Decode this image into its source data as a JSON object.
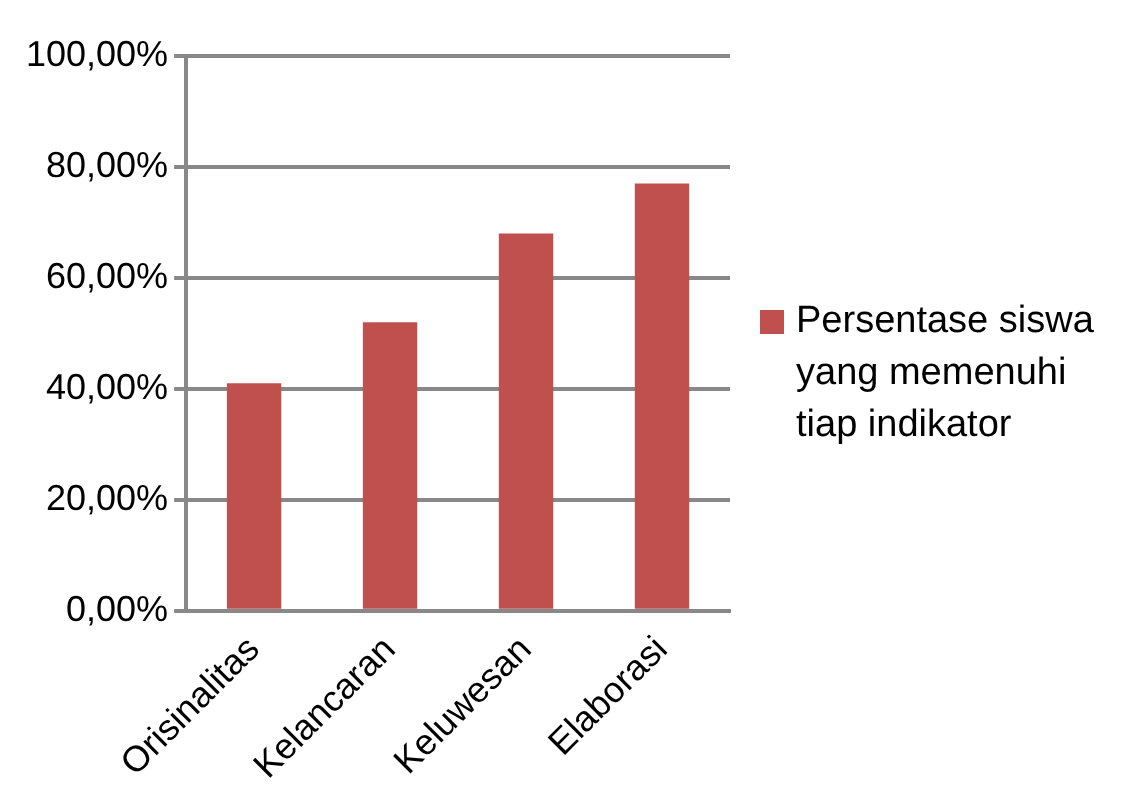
{
  "chart_data": {
    "type": "bar",
    "categories": [
      "Orisinalitas",
      "Kelancaran",
      "Keluwesan",
      "Elaborasi"
    ],
    "series": [
      {
        "name": "Persentase siswa yang memenuhi tiap indikator",
        "color": "#c0504d",
        "values": [
          41,
          52,
          68,
          77
        ]
      }
    ],
    "ylim": [
      0,
      100
    ],
    "yticks": [
      {
        "value": 0,
        "label": "0,00%"
      },
      {
        "value": 20,
        "label": "20,00%"
      },
      {
        "value": 40,
        "label": "40,00%"
      },
      {
        "value": 60,
        "label": "60,00%"
      },
      {
        "value": 80,
        "label": "80,00%"
      },
      {
        "value": 100,
        "label": "100,00%"
      }
    ],
    "grid": "y",
    "legend": "right"
  }
}
